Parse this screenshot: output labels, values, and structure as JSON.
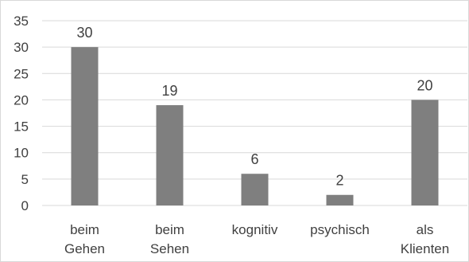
{
  "chart_data": {
    "type": "bar",
    "categories": [
      [
        "beim",
        "Gehen"
      ],
      [
        "beim",
        "Sehen"
      ],
      [
        "kognitiv"
      ],
      [
        "psychisch"
      ],
      [
        "als",
        "Klienten"
      ]
    ],
    "values": [
      30,
      19,
      6,
      2,
      20
    ],
    "data_labels": [
      "30",
      "19",
      "6",
      "2",
      "20"
    ],
    "ylim": [
      0,
      35
    ],
    "yticks": [
      0,
      5,
      10,
      15,
      20,
      25,
      30,
      35
    ],
    "title": "",
    "xlabel": "",
    "ylabel": "",
    "grid": true,
    "legend": "none",
    "colors": {
      "bar": "#7f7f7f",
      "grid": "#d9d9d9",
      "text": "#404040",
      "frame": "#d9d9d9"
    }
  }
}
